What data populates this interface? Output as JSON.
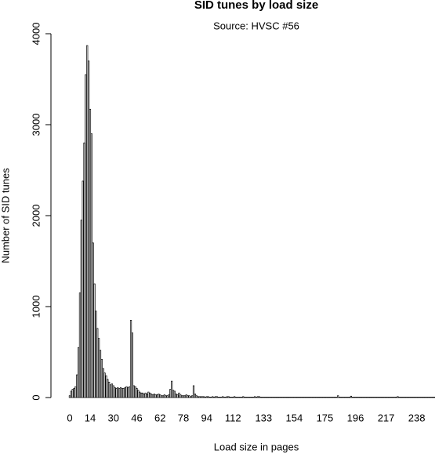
{
  "chart_data": {
    "type": "bar",
    "title": "SID tunes by load size",
    "subtitle": "Source: HVSC #56",
    "x_label": "Load size in pages",
    "y_label": "Number of SID tunes",
    "color": "#ffffff",
    "ylim": [
      0,
      4000
    ],
    "yticks": [
      0,
      1000,
      2000,
      3000,
      4000
    ],
    "categories": [
      "0",
      null,
      null,
      null,
      null,
      null,
      null,
      null,
      null,
      null,
      null,
      null,
      null,
      null,
      "14",
      null,
      null,
      null,
      null,
      null,
      null,
      null,
      null,
      null,
      null,
      null,
      null,
      null,
      null,
      null,
      "30",
      null,
      null,
      null,
      null,
      null,
      null,
      null,
      null,
      null,
      null,
      null,
      null,
      null,
      null,
      null,
      "46",
      null,
      null,
      null,
      null,
      null,
      null,
      null,
      null,
      null,
      null,
      null,
      null,
      null,
      null,
      null,
      "62",
      null,
      null,
      null,
      null,
      null,
      null,
      null,
      null,
      null,
      null,
      null,
      null,
      null,
      null,
      null,
      "78",
      null,
      null,
      null,
      null,
      null,
      null,
      null,
      null,
      null,
      null,
      null,
      null,
      null,
      null,
      null,
      "94",
      null,
      null,
      null,
      null,
      null,
      null,
      null,
      null,
      null,
      null,
      null,
      null,
      null,
      null,
      null,
      null,
      null,
      "112",
      null,
      null,
      null,
      null,
      null,
      null,
      null,
      null,
      null,
      null,
      null,
      null,
      null,
      null,
      null,
      null,
      null,
      null,
      null,
      null,
      "133",
      null,
      null,
      null,
      null,
      null,
      null,
      null,
      null,
      null,
      null,
      null,
      null,
      null,
      null,
      null,
      null,
      null,
      null,
      null,
      null,
      "154",
      null,
      null,
      null,
      null,
      null,
      null,
      null,
      null,
      null,
      null,
      null,
      null,
      null,
      null,
      null,
      null,
      null,
      null,
      null,
      null,
      "175",
      null,
      null,
      null,
      null,
      null,
      null,
      null,
      null,
      null,
      null,
      null,
      null,
      null,
      null,
      null,
      null,
      null,
      null,
      null,
      null,
      "196",
      null,
      null,
      null,
      null,
      null,
      null,
      null,
      null,
      null,
      null,
      null,
      null,
      null,
      null,
      null,
      null,
      null,
      null,
      null,
      null,
      "217",
      null,
      null,
      null,
      null,
      null,
      null,
      null,
      null,
      null,
      null,
      null,
      null,
      null,
      null,
      null,
      null,
      null,
      null,
      null,
      null,
      "238",
      null,
      null,
      null,
      null,
      null,
      null,
      null,
      null,
      null,
      null,
      null,
      null
    ],
    "values": [
      20,
      70,
      90,
      100,
      120,
      250,
      550,
      1150,
      1950,
      2380,
      2800,
      3550,
      3870,
      3700,
      3170,
      2900,
      1700,
      1250,
      950,
      760,
      650,
      520,
      420,
      320,
      270,
      240,
      200,
      170,
      140,
      150,
      130,
      110,
      100,
      110,
      100,
      110,
      100,
      100,
      110,
      120,
      110,
      120,
      850,
      710,
      130,
      120,
      100,
      80,
      60,
      50,
      50,
      40,
      50,
      40,
      60,
      50,
      40,
      30,
      40,
      30,
      30,
      40,
      30,
      20,
      20,
      30,
      20,
      20,
      30,
      90,
      180,
      80,
      70,
      40,
      30,
      50,
      30,
      20,
      20,
      20,
      30,
      20,
      20,
      10,
      20,
      130,
      40,
      20,
      10,
      10,
      10,
      10,
      10,
      5,
      10,
      10,
      5,
      5,
      10,
      5,
      10,
      10,
      5,
      5,
      5,
      10,
      5,
      5,
      10,
      10,
      5,
      5,
      5,
      10,
      5,
      5,
      5,
      5,
      5,
      10,
      5,
      5,
      5,
      5,
      5,
      5,
      5,
      10,
      5,
      10,
      10,
      5,
      5,
      5,
      5,
      5,
      5,
      5,
      5,
      5,
      5,
      5,
      5,
      5,
      5,
      5,
      5,
      5,
      5,
      5,
      5,
      5,
      5,
      5,
      5,
      5,
      5,
      5,
      5,
      5,
      5,
      5,
      5,
      5,
      5,
      5,
      5,
      5,
      5,
      5,
      5,
      5,
      5,
      5,
      5,
      5,
      5,
      5,
      5,
      5,
      5,
      5,
      5,
      5,
      20,
      5,
      5,
      5,
      5,
      5,
      5,
      5,
      5,
      15,
      5,
      5,
      5,
      5,
      5,
      5,
      5,
      5,
      5,
      5,
      5,
      5,
      5,
      5,
      5,
      5,
      5,
      5,
      5,
      5,
      5,
      5,
      5,
      5,
      5,
      5,
      5,
      5,
      5,
      5,
      5,
      10,
      5,
      5,
      5,
      5,
      5,
      5,
      5,
      5,
      5,
      5,
      5,
      5,
      5,
      5,
      5,
      5,
      5,
      5,
      5,
      5,
      5,
      5,
      5,
      5,
      5
    ]
  }
}
